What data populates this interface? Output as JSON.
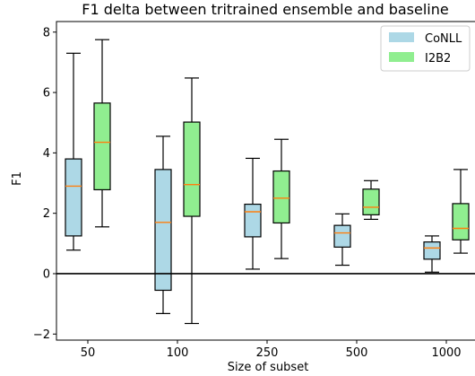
{
  "chart_data": {
    "type": "box",
    "title": "F1 delta between tritrained ensemble and baseline",
    "xlabel": "Size of subset",
    "ylabel": "F1",
    "categories": [
      "50",
      "100",
      "250",
      "500",
      "1000"
    ],
    "ylim": [
      -2.2,
      8.35
    ],
    "yticks": [
      -2,
      0,
      2,
      4,
      6,
      8
    ],
    "ytick_labels": [
      "−2",
      "0",
      "2",
      "4",
      "6",
      "8"
    ],
    "reference_line": 0,
    "grid": false,
    "legend_position": "top-right",
    "series": [
      {
        "name": "CoNLL",
        "color": "#add8e6",
        "boxes": [
          {
            "whisker_low": 0.78,
            "q1": 1.25,
            "median": 2.9,
            "q3": 3.8,
            "whisker_high": 7.3
          },
          {
            "whisker_low": -1.32,
            "q1": -0.55,
            "median": 1.7,
            "q3": 3.45,
            "whisker_high": 4.55
          },
          {
            "whisker_low": 0.15,
            "q1": 1.22,
            "median": 2.05,
            "q3": 2.3,
            "whisker_high": 3.82
          },
          {
            "whisker_low": 0.28,
            "q1": 0.88,
            "median": 1.35,
            "q3": 1.6,
            "whisker_high": 1.98
          },
          {
            "whisker_low": 0.05,
            "q1": 0.48,
            "median": 0.85,
            "q3": 1.05,
            "whisker_high": 1.25
          }
        ]
      },
      {
        "name": "I2B2",
        "color": "#90ee90",
        "boxes": [
          {
            "whisker_low": 1.55,
            "q1": 2.78,
            "median": 4.35,
            "q3": 5.65,
            "whisker_high": 7.75
          },
          {
            "whisker_low": -1.65,
            "q1": 1.9,
            "median": 2.95,
            "q3": 5.02,
            "whisker_high": 6.48
          },
          {
            "whisker_low": 0.5,
            "q1": 1.68,
            "median": 2.5,
            "q3": 3.4,
            "whisker_high": 4.45
          },
          {
            "whisker_low": 1.8,
            "q1": 1.95,
            "median": 2.2,
            "q3": 2.8,
            "whisker_high": 3.08
          },
          {
            "whisker_low": 0.68,
            "q1": 1.12,
            "median": 1.5,
            "q3": 2.32,
            "whisker_high": 3.45
          }
        ]
      }
    ],
    "median_color": "#ff7f0e"
  }
}
